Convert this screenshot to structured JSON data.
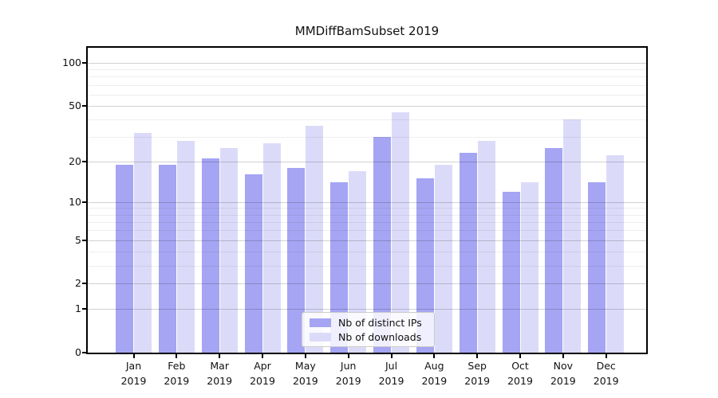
{
  "chart_data": {
    "type": "bar",
    "title": "MMDiffBamSubset 2019",
    "xlabel": "",
    "ylabel": "",
    "categories": [
      "Jan 2019",
      "Feb 2019",
      "Mar 2019",
      "Apr 2019",
      "May 2019",
      "Jun 2019",
      "Jul 2019",
      "Aug 2019",
      "Sep 2019",
      "Oct 2019",
      "Nov 2019",
      "Dec 2019"
    ],
    "series": [
      {
        "name": "Nb of distinct IPs",
        "color": "#a5a5f3",
        "values": [
          19,
          19,
          21,
          16,
          18,
          14,
          30,
          15,
          23,
          12,
          25,
          14
        ]
      },
      {
        "name": "Nb of downloads",
        "color": "#dbdbf9",
        "values": [
          32,
          28,
          25,
          27,
          36,
          17,
          45,
          19,
          28,
          14,
          40,
          22
        ]
      }
    ],
    "yscale": "log1p",
    "yticks": [
      0,
      1,
      2,
      5,
      10,
      20,
      50,
      100
    ],
    "minor_yticks": [
      3,
      4,
      6,
      7,
      8,
      9,
      30,
      40,
      60,
      70,
      80,
      90
    ],
    "ylim": [
      0,
      127
    ],
    "grid": true,
    "legend_position": "bottom-center",
    "colors": {
      "spine": "#000000",
      "background": "#ffffff",
      "text": "#111111"
    }
  }
}
